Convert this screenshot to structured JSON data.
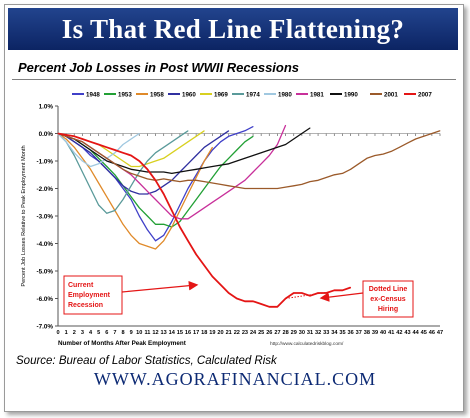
{
  "header": {
    "title": "Is That Red Line Flattening?"
  },
  "chart_data": {
    "type": "line",
    "title": "Percent Job Losses in Post WWII Recessions",
    "xlabel": "Number of Months After Peak Employment",
    "ylabel": "Percent Job Losses Relative to Peak Employment Month",
    "xlim": [
      0,
      47
    ],
    "ylim": [
      -7,
      1
    ],
    "x_ticks": [
      0,
      1,
      2,
      3,
      4,
      5,
      6,
      7,
      8,
      9,
      10,
      11,
      12,
      13,
      14,
      15,
      16,
      17,
      18,
      19,
      20,
      21,
      22,
      23,
      24,
      25,
      26,
      27,
      28,
      29,
      30,
      31,
      32,
      33,
      34,
      35,
      36,
      37,
      38,
      39,
      40,
      41,
      42,
      43,
      44,
      45,
      46,
      47
    ],
    "y_ticks": [
      1,
      0,
      -1,
      -2,
      -3,
      -4,
      -5,
      -6,
      -7
    ],
    "y_tick_labels": [
      "1.0%",
      "0.0%",
      "-1.0%",
      "-2.0%",
      "-3.0%",
      "-4.0%",
      "-5.0%",
      "-6.0%",
      "-7.0%"
    ],
    "grid": false,
    "legend_position": "top",
    "url_note": "http://www.calculatedriskblog.com/",
    "series": [
      {
        "name": "1948",
        "color": "#4040c8",
        "x": [
          0,
          1,
          2,
          3,
          4,
          5,
          6,
          7,
          8,
          9,
          10,
          11,
          12,
          13,
          14,
          15,
          16,
          17,
          18,
          19,
          20,
          21,
          22,
          23,
          24
        ],
        "y": [
          0,
          -0.1,
          -0.3,
          -0.5,
          -0.8,
          -1.0,
          -1.3,
          -1.6,
          -2.0,
          -2.4,
          -3.0,
          -3.5,
          -3.9,
          -3.7,
          -3.2,
          -2.6,
          -2.0,
          -1.5,
          -1.0,
          -0.6,
          -0.3,
          -0.1,
          0.0,
          0.1,
          0.25
        ]
      },
      {
        "name": "1953",
        "color": "#22a035",
        "x": [
          0,
          1,
          2,
          3,
          4,
          5,
          6,
          7,
          8,
          9,
          10,
          11,
          12,
          13,
          14,
          15,
          16,
          17,
          18,
          19,
          20,
          21,
          22,
          23,
          24
        ],
        "y": [
          0,
          -0.1,
          -0.2,
          -0.4,
          -0.6,
          -0.9,
          -1.2,
          -1.5,
          -1.9,
          -2.3,
          -2.7,
          -3.0,
          -3.3,
          -3.3,
          -3.4,
          -3.2,
          -2.8,
          -2.4,
          -2.0,
          -1.6,
          -1.2,
          -0.9,
          -0.6,
          -0.3,
          -0.1
        ]
      },
      {
        "name": "1958",
        "color": "#e08a2a",
        "x": [
          0,
          1,
          2,
          3,
          4,
          5,
          6,
          7,
          8,
          9,
          10,
          11,
          12,
          13,
          14,
          15,
          16,
          17,
          18,
          19
        ],
        "y": [
          0,
          -0.2,
          -0.5,
          -0.9,
          -1.3,
          -1.8,
          -2.3,
          -2.8,
          -3.3,
          -3.7,
          -4.0,
          -4.1,
          -4.2,
          -3.9,
          -3.4,
          -2.8,
          -2.2,
          -1.6,
          -1.0,
          -0.5
        ]
      },
      {
        "name": "1960",
        "color": "#3030a0",
        "x": [
          0,
          1,
          2,
          3,
          4,
          5,
          6,
          7,
          8,
          9,
          10,
          11,
          12,
          13,
          14,
          15,
          16,
          17,
          18,
          19,
          20,
          21
        ],
        "y": [
          0,
          -0.1,
          -0.3,
          -0.5,
          -0.7,
          -1.0,
          -1.3,
          -1.6,
          -1.9,
          -2.1,
          -2.2,
          -2.2,
          -2.1,
          -1.9,
          -1.7,
          -1.4,
          -1.1,
          -0.8,
          -0.5,
          -0.3,
          -0.1,
          0.1
        ]
      },
      {
        "name": "1969",
        "color": "#d8d020",
        "x": [
          0,
          1,
          2,
          3,
          4,
          5,
          6,
          7,
          8,
          9,
          10,
          11,
          12,
          13,
          14,
          15,
          16,
          17,
          18
        ],
        "y": [
          0,
          -0.05,
          -0.1,
          -0.2,
          -0.3,
          -0.4,
          -0.6,
          -0.8,
          -1.0,
          -1.2,
          -1.2,
          -1.1,
          -1.0,
          -0.9,
          -0.7,
          -0.5,
          -0.3,
          -0.1,
          0.1
        ]
      },
      {
        "name": "1974",
        "color": "#5a9a9a",
        "x": [
          0,
          1,
          2,
          3,
          4,
          5,
          6,
          7,
          8,
          9,
          10,
          11,
          12,
          13,
          14,
          15,
          16
        ],
        "y": [
          0,
          -0.3,
          -0.8,
          -1.4,
          -2.0,
          -2.6,
          -2.9,
          -2.8,
          -2.4,
          -1.9,
          -1.4,
          -1.0,
          -0.7,
          -0.5,
          -0.3,
          -0.1,
          0.1
        ]
      },
      {
        "name": "1980",
        "color": "#a0c8e0",
        "x": [
          0,
          1,
          2,
          3,
          4,
          5,
          6,
          7,
          8,
          9,
          10
        ],
        "y": [
          0,
          -0.3,
          -0.7,
          -1.0,
          -1.2,
          -1.1,
          -0.9,
          -0.7,
          -0.4,
          -0.2,
          0.0
        ]
      },
      {
        "name": "1981",
        "color": "#c8309a",
        "x": [
          0,
          1,
          2,
          3,
          4,
          5,
          6,
          7,
          8,
          9,
          10,
          11,
          12,
          13,
          14,
          15,
          16,
          17,
          18,
          19,
          20,
          21,
          22,
          23,
          24,
          25,
          26,
          27,
          28
        ],
        "y": [
          0,
          -0.1,
          -0.2,
          -0.3,
          -0.5,
          -0.7,
          -0.9,
          -1.1,
          -1.3,
          -1.5,
          -1.8,
          -2.1,
          -2.4,
          -2.7,
          -3.0,
          -3.1,
          -3.1,
          -2.9,
          -2.7,
          -2.5,
          -2.3,
          -2.1,
          -1.9,
          -1.7,
          -1.4,
          -1.1,
          -0.8,
          -0.4,
          0.3
        ]
      },
      {
        "name": "1990",
        "color": "#101010",
        "x": [
          0,
          1,
          2,
          3,
          4,
          5,
          6,
          7,
          8,
          9,
          10,
          11,
          12,
          13,
          14,
          15,
          16,
          17,
          18,
          19,
          20,
          21,
          22,
          23,
          24,
          25,
          26,
          27,
          28,
          29,
          30,
          31
        ],
        "y": [
          0,
          -0.1,
          -0.2,
          -0.4,
          -0.6,
          -0.8,
          -1.0,
          -1.1,
          -1.2,
          -1.3,
          -1.35,
          -1.4,
          -1.4,
          -1.4,
          -1.45,
          -1.4,
          -1.35,
          -1.3,
          -1.25,
          -1.2,
          -1.15,
          -1.1,
          -1.0,
          -0.9,
          -0.8,
          -0.7,
          -0.6,
          -0.5,
          -0.4,
          -0.2,
          0.0,
          0.2
        ]
      },
      {
        "name": "2001",
        "color": "#9b5a2a",
        "x": [
          0,
          1,
          2,
          3,
          4,
          5,
          6,
          7,
          8,
          9,
          10,
          11,
          12,
          13,
          14,
          15,
          16,
          17,
          18,
          19,
          20,
          21,
          22,
          23,
          24,
          25,
          26,
          27,
          28,
          29,
          30,
          31,
          32,
          33,
          34,
          35,
          36,
          37,
          38,
          39,
          40,
          41,
          42,
          43,
          44,
          45,
          46,
          47
        ],
        "y": [
          0,
          -0.1,
          -0.2,
          -0.3,
          -0.5,
          -0.7,
          -0.9,
          -1.1,
          -1.3,
          -1.45,
          -1.55,
          -1.65,
          -1.7,
          -1.65,
          -1.7,
          -1.75,
          -1.7,
          -1.7,
          -1.75,
          -1.8,
          -1.85,
          -1.9,
          -1.95,
          -2.0,
          -2.0,
          -2.0,
          -2.0,
          -2.0,
          -1.95,
          -1.9,
          -1.85,
          -1.75,
          -1.7,
          -1.6,
          -1.5,
          -1.45,
          -1.3,
          -1.1,
          -0.9,
          -0.8,
          -0.75,
          -0.65,
          -0.5,
          -0.35,
          -0.2,
          -0.1,
          0.0,
          0.1
        ]
      },
      {
        "name": "2007",
        "color": "#e41515",
        "x": [
          0,
          1,
          2,
          3,
          4,
          5,
          6,
          7,
          8,
          9,
          10,
          11,
          12,
          13,
          14,
          15,
          16,
          17,
          18,
          19,
          20,
          21,
          22,
          23,
          24,
          25,
          26,
          27,
          28,
          29,
          30,
          31,
          32,
          33,
          34,
          35,
          36
        ],
        "y": [
          0,
          -0.05,
          -0.1,
          -0.2,
          -0.3,
          -0.4,
          -0.5,
          -0.6,
          -0.7,
          -0.8,
          -1.0,
          -1.3,
          -1.7,
          -2.2,
          -2.8,
          -3.4,
          -3.9,
          -4.4,
          -4.8,
          -5.2,
          -5.5,
          -5.8,
          -6.0,
          -6.1,
          -6.1,
          -6.2,
          -6.3,
          -6.3,
          -6.0,
          -5.8,
          -5.8,
          -5.9,
          -5.8,
          -5.8,
          -5.7,
          -5.7,
          -5.6
        ]
      }
    ],
    "annotations": [
      {
        "text": [
          "Current",
          "Employment",
          "Recession"
        ]
      },
      {
        "text": [
          "Dotted Line",
          "ex-Census",
          "Hiring"
        ]
      }
    ]
  },
  "footer": {
    "source": "Source: Bureau of Labor Statistics, Calculated Risk",
    "brand": "WWW.AGORAFINANCIAL.COM"
  }
}
